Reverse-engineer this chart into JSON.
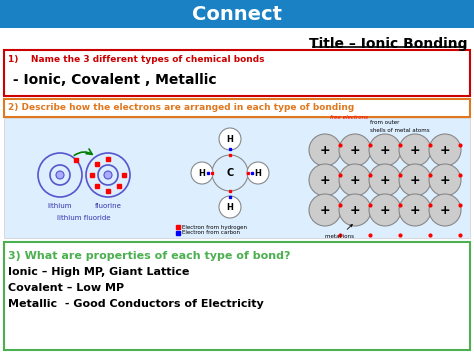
{
  "header_text": "Connect",
  "header_bg": "#1a82c4",
  "header_text_color": "#ffffff",
  "title_text": "Title – Ionic Bonding",
  "title_color": "#000000",
  "box1_border": "#cc0000",
  "box1_q_color": "#cc0000",
  "box1_q_text": "1)    Name the 3 different types of chemical bonds",
  "box1_a_text": " - Ionic, Covalent , Metallic",
  "box1_a_color": "#000000",
  "box2_border": "#e07820",
  "box2_text": "2) Describe how the electrons are arranged in each type of bonding",
  "box2_text_color": "#e07820",
  "box3_border": "#4caf50",
  "box3_q_text": "3) What are properties of each type of bond?",
  "box3_q_color": "#4caf50",
  "box3_lines": [
    "Ionic – High MP, Giant Lattice",
    "Covalent – Low MP",
    "Metallic  - Good Conductors of Electricity"
  ],
  "box3_line_color": "#000000",
  "bg_color": "#ffffff",
  "middle_bg": "#ddeeff"
}
